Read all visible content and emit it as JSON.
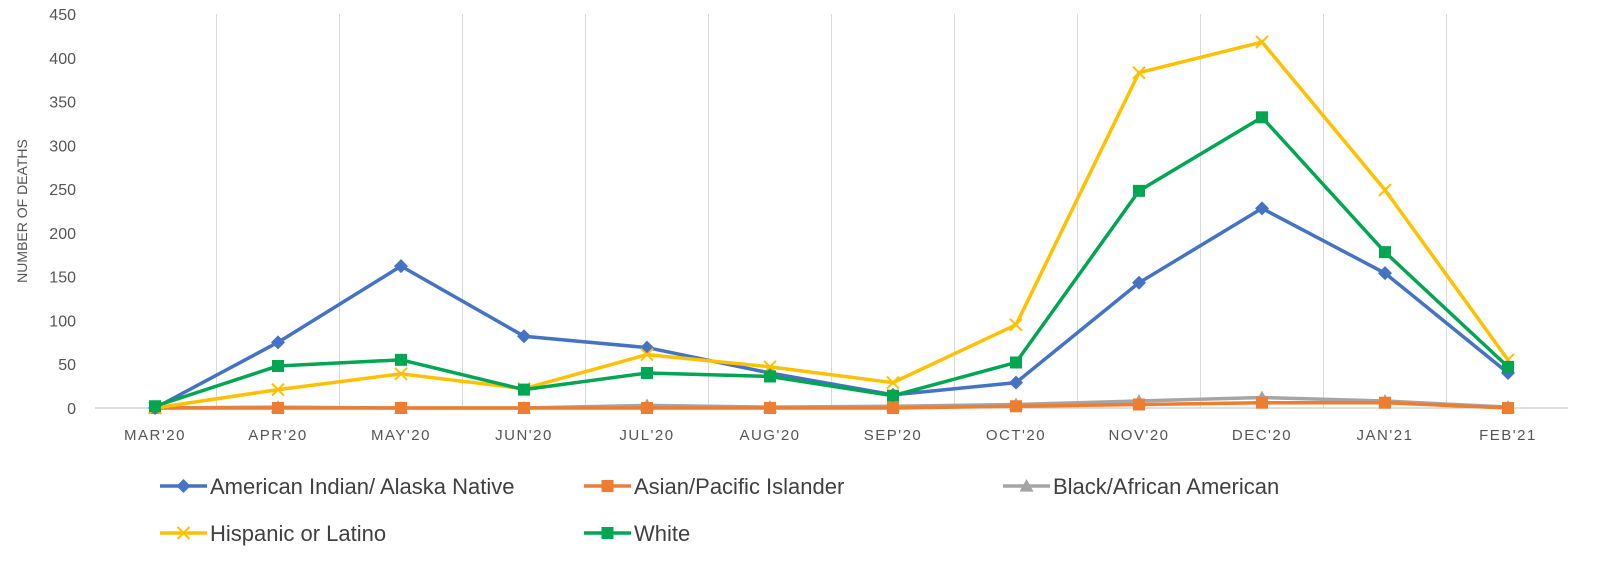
{
  "chart_data": {
    "type": "line",
    "title": "",
    "xlabel": "",
    "ylabel": "NUMBER OF DEATHS",
    "ylim": [
      0,
      450
    ],
    "yticks": [
      0,
      50,
      100,
      150,
      200,
      250,
      300,
      350,
      400,
      450
    ],
    "grid": "vertical",
    "legend_position": "bottom",
    "categories": [
      "MAR'20",
      "APR'20",
      "MAY'20",
      "JUN'20",
      "JUL'20",
      "AUG'20",
      "SEP'20",
      "OCT'20",
      "NOV'20",
      "DEC'20",
      "JAN'21",
      "FEB'21"
    ],
    "series": [
      {
        "name": "American Indian/ Alaska Native",
        "color": "#4472C4",
        "marker": "diamond",
        "values": [
          0,
          75,
          162,
          82,
          69,
          40,
          15,
          29,
          143,
          228,
          154,
          40
        ]
      },
      {
        "name": "Asian/Pacific Islander",
        "color": "#ED7D31",
        "marker": "square",
        "values": [
          0,
          0,
          0,
          0,
          0,
          0,
          0,
          2,
          4,
          6,
          6,
          0
        ]
      },
      {
        "name": "Black/African American",
        "color": "#A5A5A5",
        "marker": "triangle",
        "values": [
          0,
          1,
          0,
          0,
          3,
          1,
          2,
          4,
          8,
          12,
          8,
          1
        ]
      },
      {
        "name": "Hispanic or Latino",
        "color": "#FFC000",
        "marker": "x",
        "values": [
          0,
          21,
          39,
          22,
          61,
          47,
          29,
          95,
          383,
          418,
          249,
          55
        ]
      },
      {
        "name": "White",
        "color": "#00A651",
        "marker": "square",
        "values": [
          2,
          48,
          55,
          21,
          40,
          36,
          14,
          52,
          248,
          332,
          178,
          47
        ]
      }
    ]
  }
}
